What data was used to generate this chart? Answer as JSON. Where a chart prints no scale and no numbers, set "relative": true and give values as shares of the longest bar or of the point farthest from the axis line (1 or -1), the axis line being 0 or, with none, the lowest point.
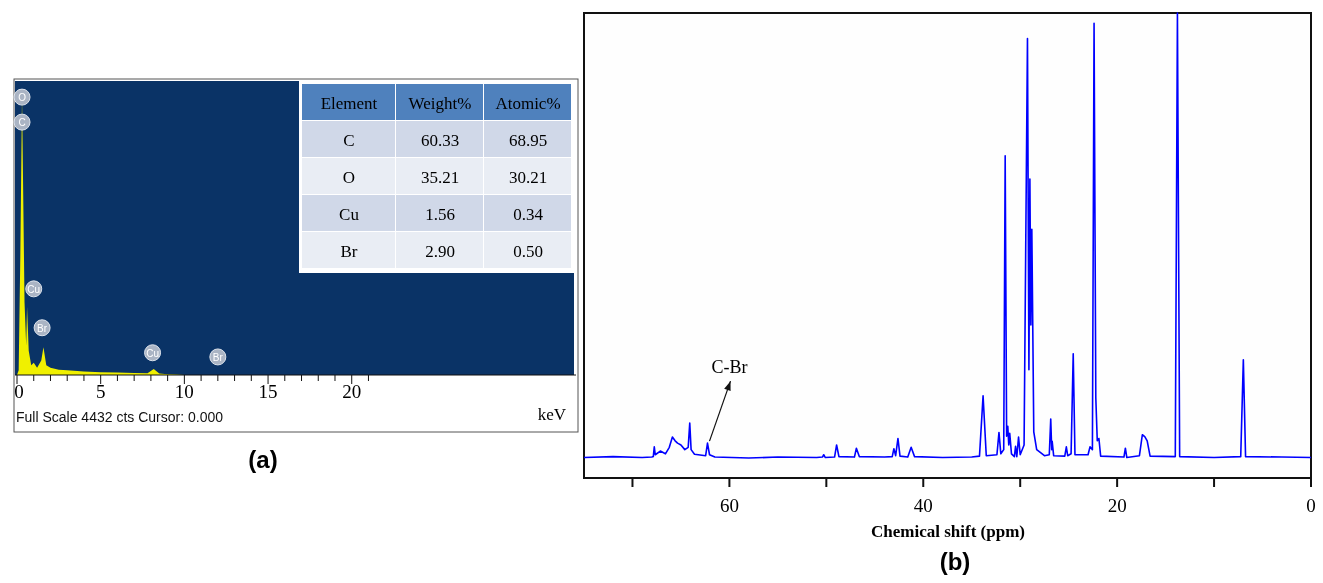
{
  "chart_data": [
    {
      "type": "area",
      "title": "(a)",
      "xlabel": "keV",
      "relative": true,
      "color": "#f0f000",
      "tick_labels": "x",
      "xlim": [
        0,
        33.4
      ],
      "xticks": [
        0,
        {
          "value": 1,
          "label": null
        },
        {
          "value": 2,
          "label": null
        },
        {
          "value": 3,
          "label": null
        },
        {
          "value": 4,
          "label": null
        },
        5,
        {
          "value": 6,
          "label": null
        },
        {
          "value": 7,
          "label": null
        },
        {
          "value": 8,
          "label": null
        },
        {
          "value": 9,
          "label": null
        },
        10,
        {
          "value": 11,
          "label": null
        },
        {
          "value": 12,
          "label": null
        },
        {
          "value": 13,
          "label": null
        },
        {
          "value": 14,
          "label": null
        },
        15,
        {
          "value": 16,
          "label": null
        },
        {
          "value": 17,
          "label": null
        },
        {
          "value": 18,
          "label": null
        },
        {
          "value": 19,
          "label": null
        },
        20,
        {
          "value": 21,
          "label": null
        }
      ],
      "x": [
        0,
        0.1,
        0.2,
        0.3,
        0.45,
        0.55,
        0.6,
        0.7,
        0.85,
        1.0,
        1.2,
        1.45,
        1.58,
        1.75,
        2.0,
        2.5,
        3.0,
        4,
        5,
        6,
        7,
        7.8,
        8.17,
        8.5,
        9,
        9.5,
        10,
        33
      ],
      "values": [
        0,
        0.017,
        0.437,
        1,
        0.262,
        0.105,
        0.245,
        0.087,
        0.035,
        0.044,
        0.026,
        0.052,
        0.1,
        0.035,
        0.026,
        0.019,
        0.017,
        0.013,
        0.01,
        0.009,
        0.007,
        0.006,
        0.022,
        0.005,
        0.003,
        0.002,
        0,
        0
      ],
      "annotations": [
        {
          "text": "O",
          "x": 0.3,
          "y": 1.0
        },
        {
          "text": "C",
          "x": 0.3,
          "y": 0.91
        },
        {
          "text": "Cu",
          "x": 1.0,
          "y": 0.31
        },
        {
          "text": "Br",
          "x": 1.5,
          "y": 0.17
        },
        {
          "text": "Cu",
          "x": 8.1,
          "y": 0.08
        },
        {
          "text": "Br",
          "x": 12.0,
          "y": 0.065
        },
        "Full Scale 4432 cts Cursor: 0.000"
      ]
    },
    {
      "type": "heatmap",
      "ylabel": "Element",
      "categories": [
        "Weight%",
        "Atomic%"
      ],
      "y_categories": [
        "C",
        "O",
        "Cu",
        "Br"
      ],
      "cells": [
        [
          60.33,
          68.95
        ],
        [
          35.21,
          30.21
        ],
        [
          1.56,
          0.34
        ],
        [
          2.9,
          0.5
        ]
      ],
      "cell_labels": [
        [
          "60.33",
          "68.95"
        ],
        [
          "35.21",
          "30.21"
        ],
        [
          "1.56",
          "0.34"
        ],
        [
          "2.90",
          "0.50"
        ]
      ]
    },
    {
      "type": "line",
      "title": "(b)",
      "xlabel": "Chemical shift (ppm)",
      "relative": true,
      "color": "#0000ff",
      "tick_labels": "x",
      "xlim": [
        75,
        0
      ],
      "xticks": [
        {
          "value": 70,
          "label": null
        },
        60,
        {
          "value": 50,
          "label": null
        },
        40,
        {
          "value": 30,
          "label": null
        },
        20,
        {
          "value": 10,
          "label": null
        },
        0
      ],
      "x": [
        75,
        72,
        69,
        68,
        67.85,
        67.75,
        67.65,
        67.13,
        66.6,
        66.2,
        65.88,
        65.6,
        65.35,
        65.0,
        64.6,
        64.25,
        64.09,
        63.95,
        63.6,
        62.45,
        62.26,
        62.05,
        61.5,
        58,
        55,
        51,
        50.4,
        50.27,
        50.1,
        49.15,
        48.94,
        48.7,
        47.1,
        46.9,
        46.6,
        44,
        43.2,
        43.03,
        42.85,
        42.61,
        42.4,
        41.6,
        41.25,
        40.9,
        38,
        35,
        34.2,
        33.83,
        33.5,
        32.4,
        32.19,
        32.0,
        31.7,
        31.55,
        31.4,
        31.28,
        31.18,
        31.08,
        30.9,
        30.6,
        30.48,
        30.35,
        30.17,
        30.0,
        29.6,
        29.25,
        29.1,
        29.0,
        28.9,
        28.8,
        28.6,
        28.3,
        27.5,
        27.0,
        26.85,
        26.75,
        26.7,
        26.55,
        25.4,
        25.24,
        25.1,
        24.75,
        24.53,
        24.35,
        23.0,
        22.8,
        22.55,
        22.38,
        22.2,
        22.05,
        21.88,
        21.7,
        19.3,
        19.15,
        19.0,
        17.7,
        17.4,
        17.15,
        16.9,
        16.6,
        14.0,
        13.78,
        13.55,
        10,
        7.25,
        6.98,
        6.75,
        3,
        0
      ],
      "values": [
        0.044,
        0.046,
        0.044,
        0.045,
        0.046,
        0.067,
        0.05,
        0.058,
        0.052,
        0.066,
        0.088,
        0.08,
        0.075,
        0.071,
        0.061,
        0.066,
        0.118,
        0.061,
        0.051,
        0.048,
        0.075,
        0.05,
        0.045,
        0.043,
        0.045,
        0.044,
        0.045,
        0.05,
        0.044,
        0.045,
        0.071,
        0.046,
        0.045,
        0.064,
        0.046,
        0.045,
        0.046,
        0.063,
        0.048,
        0.085,
        0.047,
        0.045,
        0.066,
        0.046,
        0.044,
        0.045,
        0.047,
        0.177,
        0.048,
        0.05,
        0.098,
        0.052,
        0.061,
        0.693,
        0.09,
        0.111,
        0.071,
        0.096,
        0.052,
        0.046,
        0.068,
        0.046,
        0.088,
        0.05,
        0.071,
        0.945,
        0.233,
        0.643,
        0.329,
        0.535,
        0.099,
        0.061,
        0.048,
        0.05,
        0.127,
        0.061,
        0.079,
        0.048,
        0.047,
        0.067,
        0.048,
        0.052,
        0.267,
        0.05,
        0.05,
        0.067,
        0.061,
        0.978,
        0.172,
        0.08,
        0.085,
        0.047,
        0.045,
        0.064,
        0.044,
        0.048,
        0.093,
        0.089,
        0.08,
        0.047,
        0.046,
        1,
        0.046,
        0.044,
        0.046,
        0.254,
        0.046,
        0.045,
        0.044
      ],
      "annotations": [
        {
          "text": "C-Br",
          "x": 62.26,
          "y": 0.075
        }
      ]
    }
  ]
}
